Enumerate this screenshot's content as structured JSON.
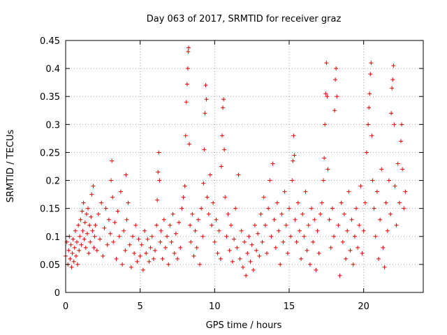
{
  "chart_data": {
    "type": "scatter",
    "title": "Day 063 of 2017, SRMTID for receiver graz",
    "xlabel": "GPS time / hours",
    "ylabel": "SRMTID / TECUs",
    "xlim": [
      0,
      24
    ],
    "ylim": [
      0,
      0.45
    ],
    "xticks": [
      0,
      5,
      10,
      15,
      20
    ],
    "xtick_labels": [
      "0",
      "5",
      "10",
      "15",
      "20"
    ],
    "yticks": [
      0,
      0.05,
      0.1,
      0.15,
      0.2,
      0.25,
      0.3,
      0.35,
      0.4,
      0.45
    ],
    "ytick_labels": [
      "0",
      "0.05",
      "0.1",
      "0.15",
      "0.2",
      "0.25",
      "0.3",
      "0.35",
      "0.4",
      "0.45"
    ],
    "grid": true,
    "marker": "+",
    "marker_color": "#e00000",
    "series": [
      {
        "name": "SRMTID",
        "points": [
          [
            0.0,
            0.065
          ],
          [
            0.08,
            0.09
          ],
          [
            0.15,
            0.05
          ],
          [
            0.2,
            0.075
          ],
          [
            0.25,
            0.1
          ],
          [
            0.3,
            0.06
          ],
          [
            0.35,
            0.085
          ],
          [
            0.4,
            0.045
          ],
          [
            0.45,
            0.07
          ],
          [
            0.5,
            0.095
          ],
          [
            0.55,
            0.055
          ],
          [
            0.6,
            0.08
          ],
          [
            0.65,
            0.11
          ],
          [
            0.7,
            0.065
          ],
          [
            0.75,
            0.09
          ],
          [
            0.8,
            0.05
          ],
          [
            0.85,
            0.12
          ],
          [
            0.9,
            0.075
          ],
          [
            0.95,
            0.1
          ],
          [
            1.0,
            0.13
          ],
          [
            1.05,
            0.085
          ],
          [
            1.1,
            0.145
          ],
          [
            1.15,
            0.11
          ],
          [
            1.2,
            0.16
          ],
          [
            1.25,
            0.095
          ],
          [
            1.3,
            0.125
          ],
          [
            1.35,
            0.08
          ],
          [
            1.4,
            0.14
          ],
          [
            1.45,
            0.105
          ],
          [
            1.5,
            0.15
          ],
          [
            1.55,
            0.07
          ],
          [
            1.6,
            0.12
          ],
          [
            1.65,
            0.09
          ],
          [
            1.7,
            0.135
          ],
          [
            1.75,
            0.175
          ],
          [
            1.8,
            0.11
          ],
          [
            1.85,
            0.19
          ],
          [
            1.9,
            0.08
          ],
          [
            1.95,
            0.1
          ],
          [
            2.0,
            0.12
          ],
          [
            2.1,
            0.075
          ],
          [
            2.2,
            0.14
          ],
          [
            2.3,
            0.095
          ],
          [
            2.4,
            0.16
          ],
          [
            2.5,
            0.065
          ],
          [
            2.6,
            0.115
          ],
          [
            2.7,
            0.15
          ],
          [
            2.8,
            0.085
          ],
          [
            2.9,
            0.13
          ],
          [
            3.0,
            0.105
          ],
          [
            3.05,
            0.2
          ],
          [
            3.1,
            0.235
          ],
          [
            3.15,
            0.17
          ],
          [
            3.2,
            0.09
          ],
          [
            3.3,
            0.125
          ],
          [
            3.4,
            0.06
          ],
          [
            3.5,
            0.145
          ],
          [
            3.6,
            0.1
          ],
          [
            3.7,
            0.18
          ],
          [
            3.8,
            0.05
          ],
          [
            3.9,
            0.11
          ],
          [
            4.0,
            0.075
          ],
          [
            4.05,
            0.21
          ],
          [
            4.1,
            0.13
          ],
          [
            4.2,
            0.16
          ],
          [
            4.3,
            0.085
          ],
          [
            4.4,
            0.045
          ],
          [
            4.5,
            0.1
          ],
          [
            4.6,
            0.07
          ],
          [
            4.7,
            0.12
          ],
          [
            4.8,
            0.055
          ],
          [
            4.9,
            0.095
          ],
          [
            5.0,
            0.065
          ],
          [
            5.1,
            0.085
          ],
          [
            5.2,
            0.04
          ],
          [
            5.3,
            0.11
          ],
          [
            5.4,
            0.07
          ],
          [
            5.5,
            0.095
          ],
          [
            5.6,
            0.055
          ],
          [
            5.7,
            0.08
          ],
          [
            5.8,
            0.1
          ],
          [
            5.9,
            0.06
          ],
          [
            6.0,
            0.075
          ],
          [
            6.1,
            0.12
          ],
          [
            6.15,
            0.165
          ],
          [
            6.2,
            0.215
          ],
          [
            6.25,
            0.25
          ],
          [
            6.3,
            0.2
          ],
          [
            6.35,
            0.09
          ],
          [
            6.4,
            0.11
          ],
          [
            6.5,
            0.06
          ],
          [
            6.6,
            0.13
          ],
          [
            6.7,
            0.08
          ],
          [
            6.8,
            0.1
          ],
          [
            6.9,
            0.05
          ],
          [
            7.0,
            0.12
          ],
          [
            7.1,
            0.09
          ],
          [
            7.2,
            0.14
          ],
          [
            7.3,
            0.07
          ],
          [
            7.4,
            0.105
          ],
          [
            7.5,
            0.06
          ],
          [
            7.6,
            0.125
          ],
          [
            7.7,
            0.08
          ],
          [
            7.8,
            0.15
          ],
          [
            7.9,
            0.17
          ],
          [
            8.0,
            0.19
          ],
          [
            8.05,
            0.28
          ],
          [
            8.1,
            0.34
          ],
          [
            8.15,
            0.372
          ],
          [
            8.2,
            0.4
          ],
          [
            8.22,
            0.43
          ],
          [
            8.25,
            0.437
          ],
          [
            8.3,
            0.265
          ],
          [
            8.35,
            0.12
          ],
          [
            8.4,
            0.09
          ],
          [
            8.5,
            0.14
          ],
          [
            8.6,
            0.065
          ],
          [
            8.7,
            0.11
          ],
          [
            8.8,
            0.08
          ],
          [
            8.9,
            0.13
          ],
          [
            9.0,
            0.05
          ],
          [
            9.1,
            0.15
          ],
          [
            9.2,
            0.1
          ],
          [
            9.25,
            0.195
          ],
          [
            9.3,
            0.255
          ],
          [
            9.35,
            0.32
          ],
          [
            9.4,
            0.37
          ],
          [
            9.45,
            0.345
          ],
          [
            9.5,
            0.17
          ],
          [
            9.6,
            0.14
          ],
          [
            9.7,
            0.21
          ],
          [
            9.8,
            0.12
          ],
          [
            9.9,
            0.16
          ],
          [
            10.0,
            0.09
          ],
          [
            10.1,
            0.13
          ],
          [
            10.2,
            0.07
          ],
          [
            10.3,
            0.11
          ],
          [
            10.4,
            0.06
          ],
          [
            10.45,
            0.225
          ],
          [
            10.5,
            0.28
          ],
          [
            10.55,
            0.33
          ],
          [
            10.6,
            0.345
          ],
          [
            10.65,
            0.255
          ],
          [
            10.7,
            0.17
          ],
          [
            10.8,
            0.1
          ],
          [
            10.9,
            0.14
          ],
          [
            11.0,
            0.075
          ],
          [
            11.1,
            0.12
          ],
          [
            11.2,
            0.055
          ],
          [
            11.3,
            0.095
          ],
          [
            11.4,
            0.15
          ],
          [
            11.5,
            0.08
          ],
          [
            11.6,
            0.21
          ],
          [
            11.7,
            0.06
          ],
          [
            11.8,
            0.11
          ],
          [
            11.9,
            0.045
          ],
          [
            12.0,
            0.09
          ],
          [
            12.1,
            0.03
          ],
          [
            12.2,
            0.07
          ],
          [
            12.3,
            0.1
          ],
          [
            12.4,
            0.055
          ],
          [
            12.5,
            0.085
          ],
          [
            12.6,
            0.04
          ],
          [
            12.7,
            0.12
          ],
          [
            12.8,
            0.075
          ],
          [
            12.9,
            0.105
          ],
          [
            13.0,
            0.065
          ],
          [
            13.1,
            0.14
          ],
          [
            13.2,
            0.09
          ],
          [
            13.3,
            0.17
          ],
          [
            13.4,
            0.12
          ],
          [
            13.5,
            0.07
          ],
          [
            13.6,
            0.15
          ],
          [
            13.7,
            0.2
          ],
          [
            13.8,
            0.1
          ],
          [
            13.9,
            0.23
          ],
          [
            14.0,
            0.13
          ],
          [
            14.1,
            0.08
          ],
          [
            14.2,
            0.16
          ],
          [
            14.3,
            0.11
          ],
          [
            14.4,
            0.05
          ],
          [
            14.5,
            0.14
          ],
          [
            14.6,
            0.09
          ],
          [
            14.7,
            0.18
          ],
          [
            14.8,
            0.12
          ],
          [
            14.9,
            0.07
          ],
          [
            15.0,
            0.15
          ],
          [
            15.1,
            0.1
          ],
          [
            15.2,
            0.2
          ],
          [
            15.25,
            0.235
          ],
          [
            15.3,
            0.28
          ],
          [
            15.35,
            0.245
          ],
          [
            15.4,
            0.13
          ],
          [
            15.5,
            0.09
          ],
          [
            15.6,
            0.16
          ],
          [
            15.7,
            0.11
          ],
          [
            15.8,
            0.06
          ],
          [
            15.9,
            0.14
          ],
          [
            16.0,
            0.1
          ],
          [
            16.1,
            0.18
          ],
          [
            16.2,
            0.075
          ],
          [
            16.3,
            0.12
          ],
          [
            16.4,
            0.05
          ],
          [
            16.5,
            0.15
          ],
          [
            16.6,
            0.09
          ],
          [
            16.7,
            0.13
          ],
          [
            16.8,
            0.04
          ],
          [
            16.9,
            0.11
          ],
          [
            17.0,
            0.07
          ],
          [
            17.1,
            0.14
          ],
          [
            17.2,
            0.16
          ],
          [
            17.3,
            0.2
          ],
          [
            17.35,
            0.24
          ],
          [
            17.4,
            0.3
          ],
          [
            17.45,
            0.355
          ],
          [
            17.5,
            0.41
          ],
          [
            17.55,
            0.35
          ],
          [
            17.6,
            0.22
          ],
          [
            17.7,
            0.13
          ],
          [
            17.8,
            0.08
          ],
          [
            17.9,
            0.15
          ],
          [
            18.0,
            0.1
          ],
          [
            18.05,
            0.325
          ],
          [
            18.1,
            0.38
          ],
          [
            18.15,
            0.4
          ],
          [
            18.2,
            0.35
          ],
          [
            18.3,
            0.12
          ],
          [
            18.4,
            0.03
          ],
          [
            18.5,
            0.16
          ],
          [
            18.6,
            0.09
          ],
          [
            18.7,
            0.14
          ],
          [
            18.8,
            0.06
          ],
          [
            18.9,
            0.11
          ],
          [
            19.0,
            0.18
          ],
          [
            19.1,
            0.075
          ],
          [
            19.2,
            0.13
          ],
          [
            19.3,
            0.05
          ],
          [
            19.4,
            0.1
          ],
          [
            19.5,
            0.15
          ],
          [
            19.6,
            0.08
          ],
          [
            19.7,
            0.12
          ],
          [
            19.8,
            0.19
          ],
          [
            19.9,
            0.07
          ],
          [
            20.0,
            0.11
          ],
          [
            20.1,
            0.16
          ],
          [
            20.2,
            0.25
          ],
          [
            20.3,
            0.3
          ],
          [
            20.35,
            0.33
          ],
          [
            20.4,
            0.355
          ],
          [
            20.45,
            0.39
          ],
          [
            20.5,
            0.41
          ],
          [
            20.55,
            0.28
          ],
          [
            20.6,
            0.2
          ],
          [
            20.7,
            0.15
          ],
          [
            20.8,
            0.1
          ],
          [
            20.9,
            0.18
          ],
          [
            21.0,
            0.06
          ],
          [
            21.1,
            0.13
          ],
          [
            21.2,
            0.22
          ],
          [
            21.3,
            0.08
          ],
          [
            21.4,
            0.045
          ],
          [
            21.5,
            0.16
          ],
          [
            21.6,
            0.11
          ],
          [
            21.7,
            0.2
          ],
          [
            21.8,
            0.14
          ],
          [
            21.85,
            0.32
          ],
          [
            21.9,
            0.365
          ],
          [
            21.95,
            0.38
          ],
          [
            22.0,
            0.405
          ],
          [
            22.05,
            0.3
          ],
          [
            22.1,
            0.19
          ],
          [
            22.2,
            0.12
          ],
          [
            22.3,
            0.23
          ],
          [
            22.4,
            0.16
          ],
          [
            22.5,
            0.27
          ],
          [
            22.55,
            0.3
          ],
          [
            22.6,
            0.22
          ],
          [
            22.7,
            0.15
          ],
          [
            22.8,
            0.18
          ]
        ]
      }
    ]
  }
}
